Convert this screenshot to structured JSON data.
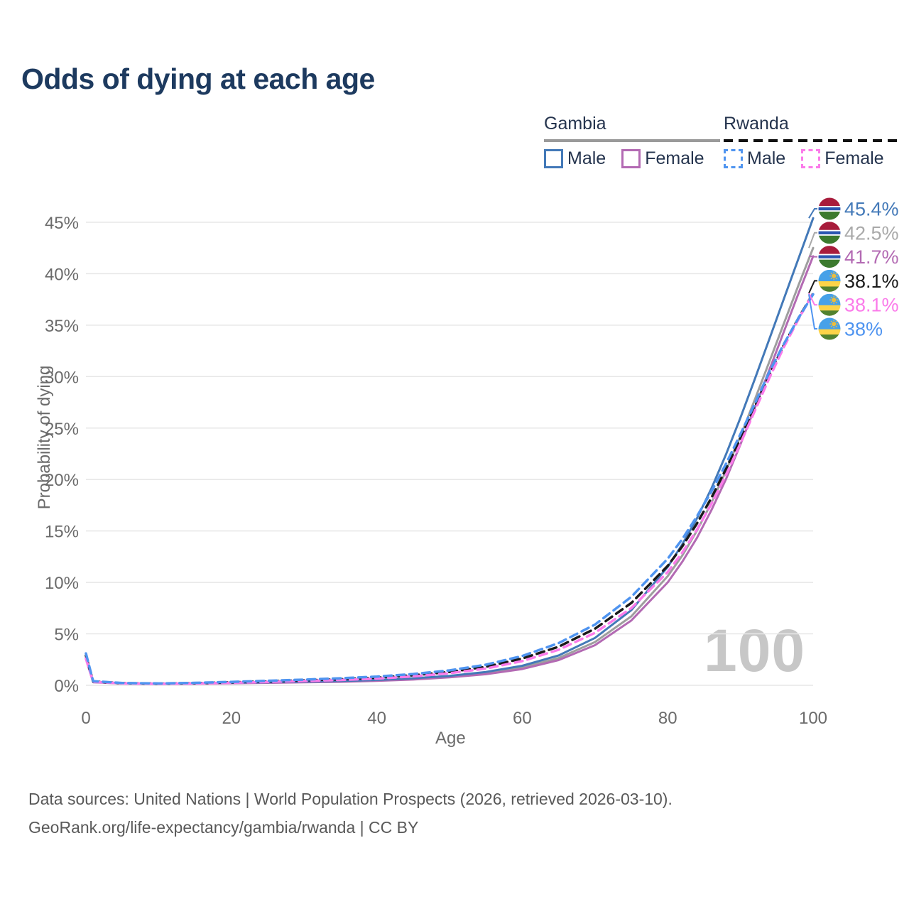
{
  "title": "Odds of dying at each age",
  "watermark": "100",
  "legend": {
    "groups": [
      {
        "label": "Gambia",
        "line_style": "solid",
        "underline_color": "#9a9a9a",
        "items": [
          {
            "label": "Male",
            "color": "#4379b8",
            "dash": false
          },
          {
            "label": "Female",
            "color": "#b36ab3",
            "dash": false
          }
        ]
      },
      {
        "label": "Rwanda",
        "line_style": "dashed",
        "underline_color": "#111111",
        "items": [
          {
            "label": "Male",
            "color": "#4f94f0",
            "dash": true
          },
          {
            "label": "Female",
            "color": "#fb7bea",
            "dash": true
          }
        ]
      }
    ]
  },
  "chart_data": {
    "type": "line",
    "title": "Odds of dying at each age",
    "xlabel": "Age",
    "ylabel": "Probability of dying",
    "xlim": [
      0,
      100
    ],
    "ylim_pct": [
      0,
      47
    ],
    "x_ticks": [
      0,
      20,
      40,
      60,
      80,
      100
    ],
    "y_ticks": [
      "0%",
      "5%",
      "10%",
      "15%",
      "20%",
      "25%",
      "30%",
      "35%",
      "40%",
      "45%"
    ],
    "grid": true,
    "x": [
      0,
      1,
      5,
      10,
      15,
      20,
      25,
      30,
      35,
      40,
      45,
      50,
      55,
      60,
      65,
      70,
      75,
      80,
      82,
      84,
      86,
      88,
      90,
      92,
      94,
      96,
      98,
      100
    ],
    "series": [
      {
        "id": "gambia-all",
        "name": "Gambia",
        "color": "#9e9e9e",
        "dash": false,
        "values": [
          2.75,
          0.33,
          0.19,
          0.14,
          0.18,
          0.23,
          0.27,
          0.32,
          0.38,
          0.47,
          0.62,
          0.84,
          1.18,
          1.72,
          2.65,
          4.2,
          6.7,
          10.6,
          12.6,
          15.0,
          17.7,
          20.8,
          24.2,
          27.8,
          31.5,
          35.2,
          38.9,
          42.5
        ]
      },
      {
        "id": "gambia-female",
        "name": "Gambia Female",
        "color": "#b36ab3",
        "dash": false,
        "values": [
          2.55,
          0.3,
          0.17,
          0.13,
          0.16,
          0.2,
          0.24,
          0.29,
          0.34,
          0.43,
          0.56,
          0.77,
          1.08,
          1.58,
          2.45,
          3.9,
          6.3,
          10.0,
          12.0,
          14.3,
          17.0,
          20.0,
          23.4,
          27.0,
          30.7,
          34.4,
          38.1,
          41.7
        ]
      },
      {
        "id": "gambia-male",
        "name": "Gambia Male",
        "color": "#4379b8",
        "dash": false,
        "values": [
          2.9,
          0.35,
          0.2,
          0.15,
          0.2,
          0.25,
          0.3,
          0.35,
          0.42,
          0.52,
          0.68,
          0.92,
          1.3,
          1.9,
          2.9,
          4.6,
          7.3,
          11.5,
          13.7,
          16.2,
          19.1,
          22.4,
          26.0,
          29.8,
          33.7,
          37.6,
          41.5,
          45.4
        ]
      },
      {
        "id": "rwanda-all",
        "name": "Rwanda",
        "color": "#1a1a1a",
        "dash": true,
        "values": [
          2.9,
          0.37,
          0.21,
          0.16,
          0.21,
          0.29,
          0.38,
          0.48,
          0.59,
          0.74,
          0.97,
          1.3,
          1.8,
          2.6,
          3.75,
          5.5,
          8.0,
          11.6,
          13.5,
          15.7,
          18.2,
          21.0,
          24.0,
          27.1,
          30.2,
          33.1,
          35.7,
          38.1
        ]
      },
      {
        "id": "rwanda-female",
        "name": "Rwanda Female",
        "color": "#fb7bea",
        "dash": true,
        "values": [
          2.6,
          0.34,
          0.19,
          0.14,
          0.18,
          0.25,
          0.33,
          0.42,
          0.52,
          0.65,
          0.86,
          1.17,
          1.63,
          2.35,
          3.45,
          5.1,
          7.5,
          11.0,
          12.9,
          15.1,
          17.6,
          20.4,
          23.5,
          26.7,
          29.9,
          32.9,
          35.6,
          38.1
        ]
      },
      {
        "id": "rwanda-male",
        "name": "Rwanda Male",
        "color": "#4f94f0",
        "dash": true,
        "values": [
          3.1,
          0.4,
          0.23,
          0.18,
          0.24,
          0.33,
          0.44,
          0.55,
          0.68,
          0.85,
          1.1,
          1.45,
          2.0,
          2.85,
          4.1,
          5.9,
          8.6,
          12.3,
          14.2,
          16.4,
          18.8,
          21.5,
          24.4,
          27.4,
          30.5,
          33.2,
          35.7,
          38.0
        ]
      }
    ],
    "end_labels": [
      {
        "flag": "gambia",
        "series": "Gambia Male",
        "text": "45.4%",
        "value": 45.4,
        "color": "#4379b8"
      },
      {
        "flag": "gambia",
        "series": "Gambia",
        "text": "42.5%",
        "value": 42.5,
        "color": "#a9a9a9"
      },
      {
        "flag": "gambia",
        "series": "Gambia Female",
        "text": "41.7%",
        "value": 41.7,
        "color": "#b36ab3"
      },
      {
        "flag": "rwanda",
        "series": "Rwanda",
        "text": "38.1%",
        "value": 38.1,
        "color": "#1a1a1a"
      },
      {
        "flag": "rwanda",
        "series": "Rwanda Female",
        "text": "38.1%",
        "value": 38.1,
        "color": "#fb7bea"
      },
      {
        "flag": "rwanda",
        "series": "Rwanda Male",
        "text": "38%",
        "value": 38.0,
        "color": "#4f94f0"
      }
    ]
  },
  "flags": {
    "gambia": {
      "stripes": [
        {
          "color": "#a81c3c",
          "from": 0,
          "to": 0.37
        },
        {
          "color": "#ffffff",
          "from": 0.37,
          "to": 0.43
        },
        {
          "color": "#2b57b0",
          "from": 0.43,
          "to": 0.57
        },
        {
          "color": "#ffffff",
          "from": 0.57,
          "to": 0.63
        },
        {
          "color": "#3c7a2e",
          "from": 0.63,
          "to": 1
        }
      ]
    },
    "rwanda": {
      "stripes": [
        {
          "color": "#47a1e8",
          "from": 0,
          "to": 0.52
        },
        {
          "color": "#fcd348",
          "from": 0.52,
          "to": 0.76
        },
        {
          "color": "#52822f",
          "from": 0.76,
          "to": 1
        }
      ],
      "sun": "#edbd3c"
    }
  },
  "footer": {
    "line1": "Data sources: United Nations | World Population Prospects (2026, retrieved 2026-03-10).",
    "line2": "GeoRank.org/life-expectancy/gambia/rwanda | CC BY"
  }
}
